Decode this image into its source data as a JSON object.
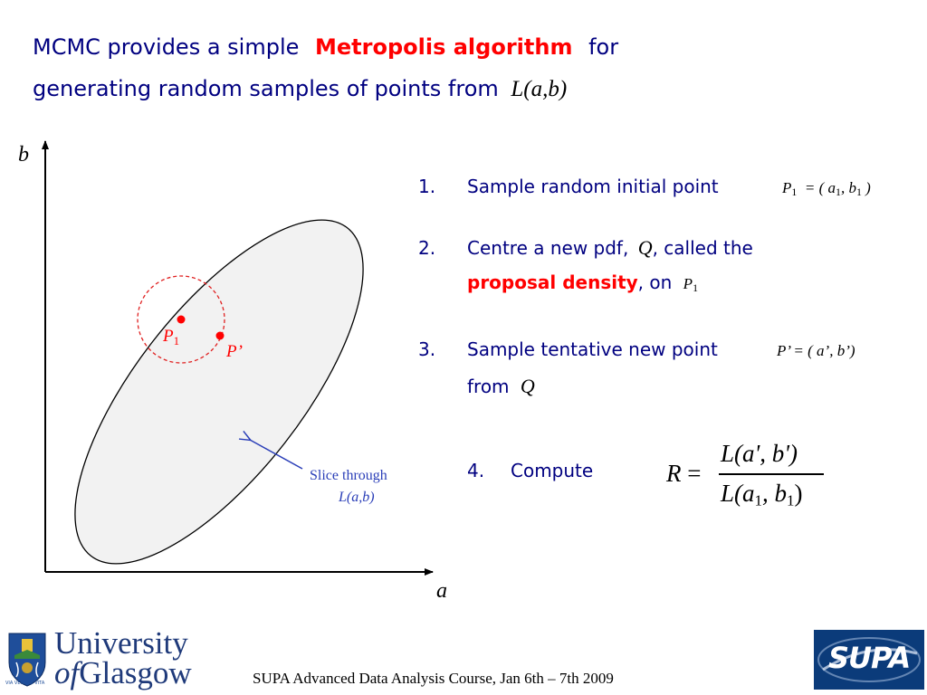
{
  "title": {
    "line1_pre": "MCMC provides a simple",
    "line1_highlight": "Metropolis algorithm",
    "line1_post": "for",
    "line2_pre": "generating random samples of points from",
    "line2_math": "L(a,b)"
  },
  "diagram": {
    "axis_b": "b",
    "axis_a": "a",
    "point_p1": "P",
    "point_p1_sub": "1",
    "point_p_prime": "P’",
    "slice_label_line1": "Slice through",
    "slice_label_line2": "L(a,b)"
  },
  "steps": [
    {
      "number": "1.",
      "text": "Sample random initial point",
      "math": "P",
      "math_sub": "1",
      "math_rest_a": "= ( a",
      "math_rest_a_sub": "1",
      "math_rest_b": ", b",
      "math_rest_b_sub": "1",
      "math_rest_end": ")"
    },
    {
      "number": "2.",
      "text_pre": "Centre a new pdf,",
      "text_math": "Q",
      "text_post": ",  called the",
      "text_highlight": "proposal density",
      "text_after": ",  on",
      "math": "P",
      "math_sub": "1"
    },
    {
      "number": "3.",
      "text": "Sample tentative new point",
      "math": "P’ = ( a’, b’)",
      "text_line2": "from",
      "text_line2_math": "Q"
    },
    {
      "number": "4.",
      "text": "Compute",
      "formula_lhs": "R =",
      "numerator": "L(a', b')",
      "denominator_pre": "L(a",
      "denominator_sub1": "1",
      "denominator_mid": ", b",
      "denominator_sub2": "1",
      "denominator_end": ")"
    }
  ],
  "footer": {
    "logo_line1": "University",
    "logo_line2_of": "of",
    "logo_line2": "Glasgow",
    "crest_motto": "VIA VERITAS VITA",
    "course_text": "SUPA Advanced Data Analysis Course, Jan 6th – 7th 2009",
    "supa_logo": "SUPA"
  },
  "colors": {
    "title_blue": "#000080",
    "highlight_red": "#ff0000",
    "slice_blue": "#2b3fb8",
    "ellipse_fill": "#f2f2f2",
    "supa_bg": "#0b3b7a"
  }
}
